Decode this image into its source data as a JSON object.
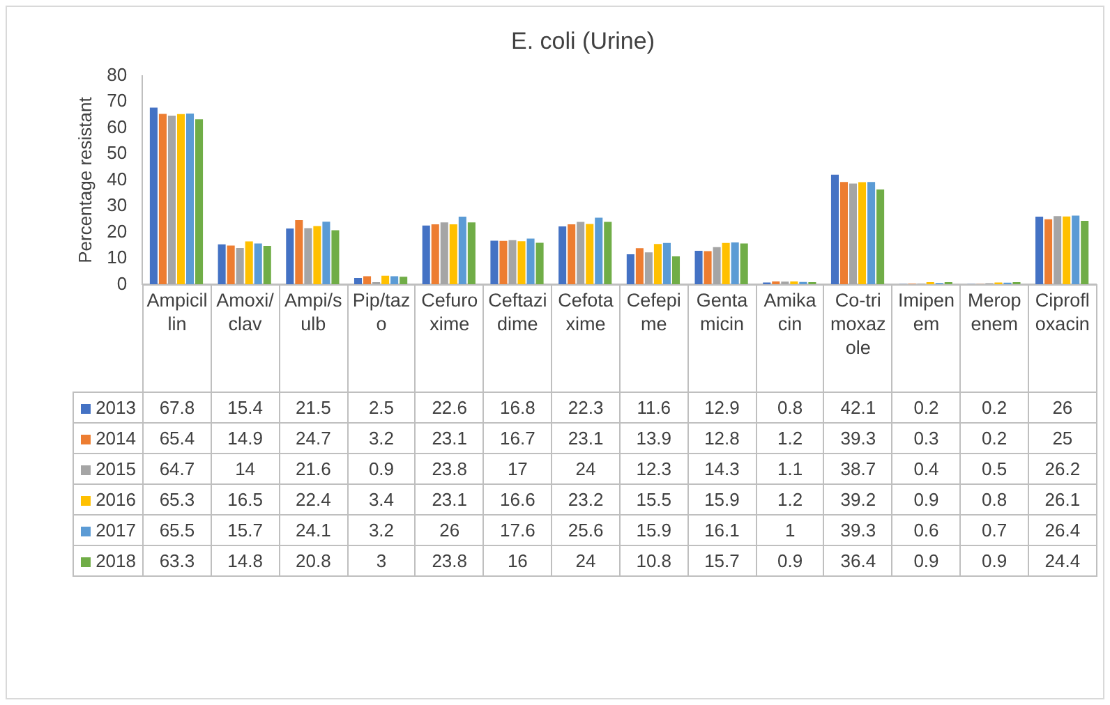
{
  "chart_data": {
    "type": "bar",
    "title": "E. coli (Urine)",
    "ylabel": "Percentage resistant",
    "categories": [
      "Ampicillin",
      "Amoxi/clav",
      "Ampi/sulb",
      "Pip/tazo",
      "Cefuroxime",
      "Ceftazidime",
      "Cefotaxime",
      "Cefepime",
      "Gentamicin",
      "Amikacin",
      "Co-trimoxazole",
      "Imipenem",
      "Meropenem",
      "Ciprofloxacin"
    ],
    "series": [
      {
        "name": "2013",
        "color": "#4472c4",
        "values": [
          67.8,
          15.4,
          21.5,
          2.5,
          22.6,
          16.8,
          22.3,
          11.6,
          12.9,
          0.8,
          42.1,
          0.2,
          0.2,
          26
        ]
      },
      {
        "name": "2014",
        "color": "#ed7d31",
        "values": [
          65.4,
          14.9,
          24.7,
          3.2,
          23.1,
          16.7,
          23.1,
          13.9,
          12.8,
          1.2,
          39.3,
          0.3,
          0.2,
          25
        ]
      },
      {
        "name": "2015",
        "color": "#a5a5a5",
        "values": [
          64.7,
          14,
          21.6,
          0.9,
          23.8,
          17,
          24,
          12.3,
          14.3,
          1.1,
          38.7,
          0.4,
          0.5,
          26.2
        ]
      },
      {
        "name": "2016",
        "color": "#ffc000",
        "values": [
          65.3,
          16.5,
          22.4,
          3.4,
          23.1,
          16.6,
          23.2,
          15.5,
          15.9,
          1.2,
          39.2,
          0.9,
          0.8,
          26.1
        ]
      },
      {
        "name": "2017",
        "color": "#5b9bd5",
        "values": [
          65.5,
          15.7,
          24.1,
          3.2,
          26,
          17.6,
          25.6,
          15.9,
          16.1,
          1,
          39.3,
          0.6,
          0.7,
          26.4
        ]
      },
      {
        "name": "2018",
        "color": "#70ad47",
        "values": [
          63.3,
          14.8,
          20.8,
          3,
          23.8,
          16,
          24,
          10.8,
          15.7,
          0.9,
          36.4,
          0.9,
          0.9,
          24.4
        ]
      }
    ],
    "ylim": [
      0,
      80
    ],
    "yticks": [
      0,
      10,
      20,
      30,
      40,
      50,
      60,
      70,
      80
    ],
    "data_labels": true,
    "legend": "bottom"
  }
}
